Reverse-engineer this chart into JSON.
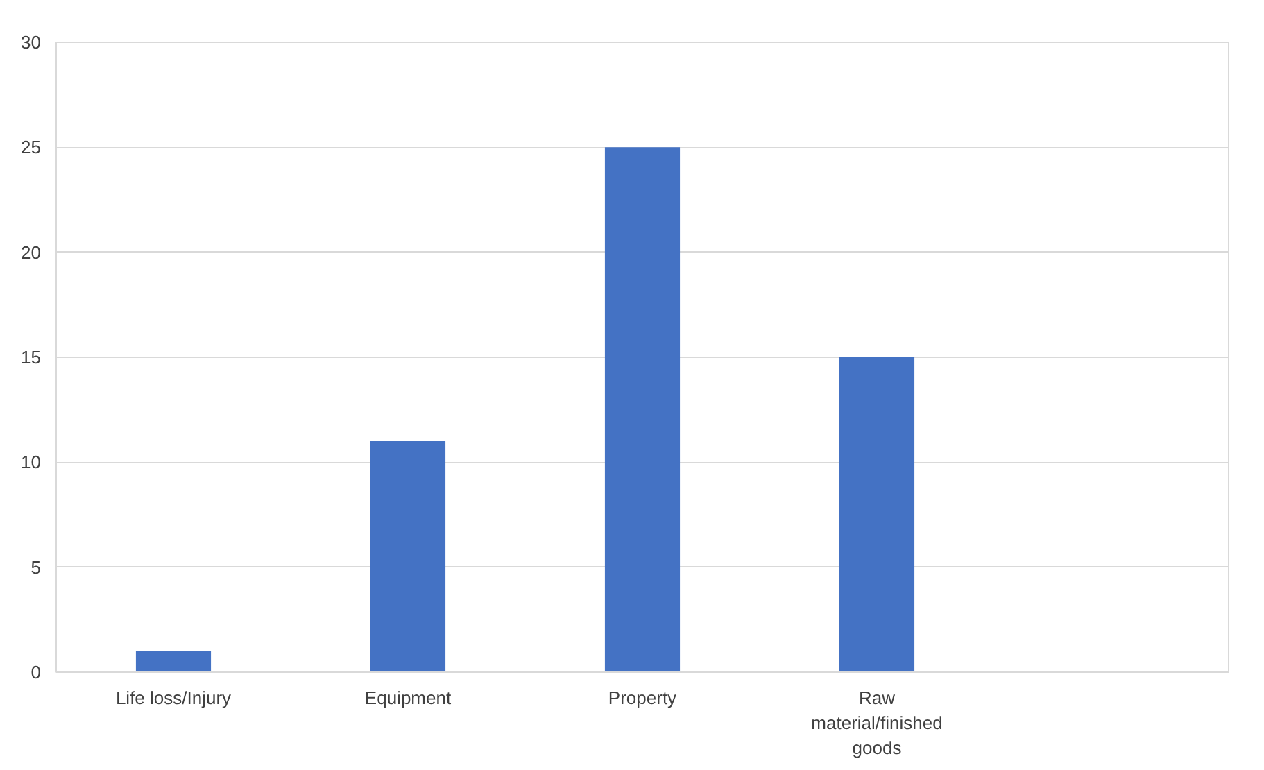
{
  "chart_data": {
    "type": "bar",
    "categories": [
      "Life loss/Injury",
      "Equipment",
      "Property",
      "Raw material/finished goods",
      null
    ],
    "values": [
      1,
      11,
      25,
      15,
      null
    ],
    "color": "#4472c4",
    "ylim": [
      0,
      30
    ],
    "yticks": [
      0,
      5,
      10,
      15,
      20,
      25,
      30
    ],
    "grid": "y"
  }
}
